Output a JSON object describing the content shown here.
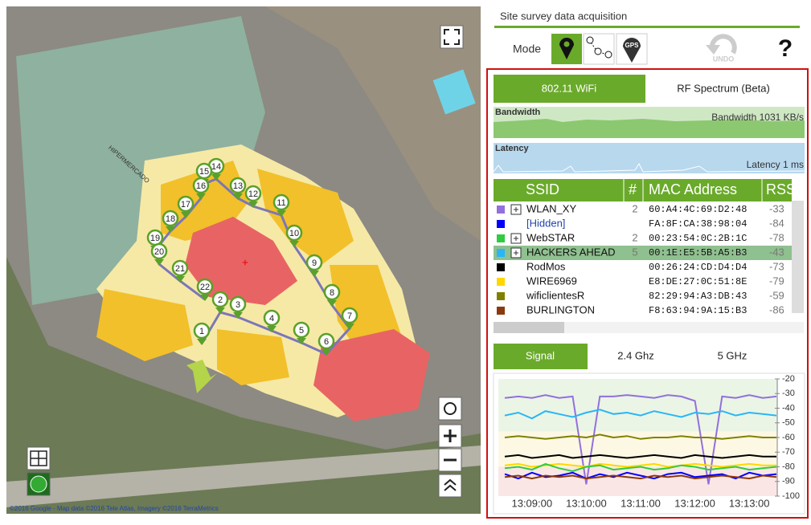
{
  "header": {
    "title": "Site survey data acquisition",
    "mode_label": "Mode",
    "gps_label": "GPS",
    "undo_label": "UNDO",
    "help_label": "?"
  },
  "map": {
    "building_label": "HIPERMERCADO",
    "waypoints": [
      "1",
      "2",
      "3",
      "4",
      "5",
      "6",
      "7",
      "8",
      "9",
      "10",
      "11",
      "12",
      "13",
      "14",
      "15",
      "16",
      "17",
      "18",
      "19",
      "20",
      "21",
      "22"
    ],
    "attribution": "©2016 Google - Map data ©2016 Tele Atlas, Imagery ©2016 TerraMetrics"
  },
  "tabs": [
    "802.11 WiFi",
    "RF Spectrum (Beta)"
  ],
  "bandwidth": {
    "title": "Bandwidth",
    "reading": "Bandwidth 1031 KB/s"
  },
  "latency": {
    "title": "Latency",
    "reading": "Latency 1 ms"
  },
  "table": {
    "columns": [
      "SSID",
      "#",
      "MAC Address",
      "RSS"
    ],
    "rows": [
      {
        "color": "#9370db",
        "ssid": "WLAN_XY",
        "count": "2",
        "mac": "60:A4:4C:69:D2:48",
        "rss": "-33"
      },
      {
        "color": "#0000ff",
        "ssid": "[Hidden]",
        "mac": "FA:8F:CA:38:98:04",
        "rss": "-84"
      },
      {
        "color": "#2ecc40",
        "ssid": "WebSTAR",
        "count": "2",
        "mac": "00:23:54:0C:2B:1C",
        "rss": "-78"
      },
      {
        "color": "#29b6f6",
        "ssid": "HACKERS AHEAD",
        "count": "5",
        "mac": "00:1E:E5:5B:A5:B3",
        "rss": "-43"
      },
      {
        "color": "#000000",
        "ssid": "RodMos",
        "mac": "00:26:24:CD:D4:D4",
        "rss": "-73"
      },
      {
        "color": "#ffd700",
        "ssid": "WIRE6969",
        "mac": "E8:DE:27:0C:51:8E",
        "rss": "-79"
      },
      {
        "color": "#808000",
        "ssid": "wificlientesR",
        "mac": "82:29:94:A3:DB:43",
        "rss": "-59"
      },
      {
        "color": "#8b3a0f",
        "ssid": "BURLINGTON",
        "mac": "F8:63:94:9A:15:B3",
        "rss": "-86"
      }
    ]
  },
  "signal_tabs": [
    "Signal",
    "2.4 Ghz",
    "5 GHz"
  ],
  "chart_data": {
    "type": "line",
    "categories": [
      null,
      null,
      "13:09:00",
      null,
      null,
      null,
      "13:10:00",
      null,
      null,
      null,
      "13:11:00",
      null,
      null,
      null,
      "13:12:00",
      null,
      null,
      null,
      "13:13:00",
      null,
      null
    ],
    "ylim": [
      -20,
      -100
    ],
    "yticks": [
      -20,
      -30,
      -40,
      -50,
      -60,
      -70,
      -80,
      -90,
      -100
    ],
    "series": [
      {
        "color": "#9370db",
        "values": [
          -33,
          -32,
          -33,
          -31,
          -33,
          -32,
          -92,
          -32,
          -32,
          -31,
          -32,
          -33,
          -31,
          -32,
          -35,
          -92,
          -32,
          -33,
          -31,
          -33,
          -32
        ]
      },
      {
        "color": "#29b6f6",
        "values": [
          -45,
          -43,
          -47,
          -42,
          -44,
          -46,
          -43,
          -41,
          -44,
          -43,
          -45,
          -42,
          -44,
          -46,
          -43,
          -44,
          -42,
          -45,
          -43,
          -44,
          -45
        ]
      },
      {
        "color": "#808000",
        "values": [
          -60,
          -59,
          -60,
          -61,
          -60,
          -59,
          -60,
          -58,
          -60,
          -59,
          -61,
          -60,
          -60,
          -59,
          -60,
          -60,
          -61,
          -60,
          -59,
          -60,
          -60
        ]
      },
      {
        "color": "#000000",
        "values": [
          -73,
          -72,
          -74,
          -73,
          -72,
          -74,
          -73,
          -72,
          -73,
          -74,
          -73,
          -72,
          -73,
          -74,
          -72,
          -73,
          -74,
          -73,
          -72,
          -73,
          -73
        ]
      },
      {
        "color": "#ffd700",
        "values": [
          -79,
          -78,
          -80,
          -79,
          -78,
          -79,
          -80,
          -78,
          -79,
          -80,
          -79,
          -78,
          -80,
          -79,
          -78,
          -79,
          -80,
          -79,
          -78,
          -79,
          -79
        ]
      },
      {
        "color": "#2ecc40",
        "values": [
          -81,
          -80,
          -82,
          -78,
          -81,
          -83,
          -80,
          -79,
          -82,
          -81,
          -80,
          -82,
          -81,
          -79,
          -80,
          -82,
          -81,
          -80,
          -82,
          -81,
          -80
        ]
      },
      {
        "color": "#0000ff",
        "values": [
          -85,
          -88,
          -84,
          -87,
          -86,
          -84,
          -88,
          -85,
          -87,
          -84,
          -86,
          -88,
          -85,
          -84,
          -87,
          -86,
          -85,
          -88,
          -84,
          -86,
          -85
        ]
      },
      {
        "color": "#8b3a0f",
        "values": [
          -87,
          -86,
          -88,
          -86,
          -87,
          -86,
          -88,
          -87,
          -86,
          -87,
          -88,
          -86,
          -87,
          -86,
          -88,
          -87,
          -86,
          -87,
          -88,
          -86,
          -87
        ]
      }
    ]
  }
}
